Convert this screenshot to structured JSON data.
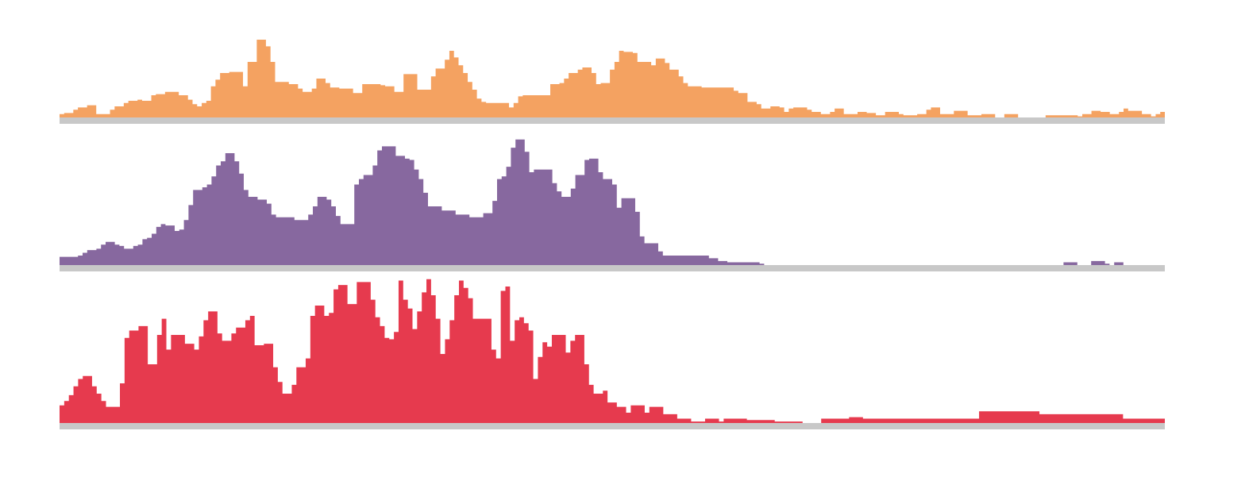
{
  "chart_data": {
    "type": "area",
    "step": true,
    "x_bins": 230,
    "grid": false,
    "legend": "none",
    "baseline_color": "#c8c8c8",
    "tracks": [
      {
        "color": "#f4a261",
        "ylim": [
          0,
          1
        ],
        "values": [
          0.03,
          0.04,
          0.04,
          0.07,
          0.09,
          0.09,
          0.11,
          0.11,
          0.03,
          0.03,
          0.03,
          0.07,
          0.1,
          0.1,
          0.13,
          0.15,
          0.15,
          0.16,
          0.15,
          0.15,
          0.2,
          0.21,
          0.21,
          0.23,
          0.23,
          0.23,
          0.2,
          0.2,
          0.16,
          0.12,
          0.1,
          0.13,
          0.15,
          0.28,
          0.34,
          0.4,
          0.4,
          0.41,
          0.41,
          0.41,
          0.28,
          0.5,
          0.5,
          0.7,
          0.7,
          0.64,
          0.5,
          0.32,
          0.32,
          0.32,
          0.3,
          0.3,
          0.26,
          0.23,
          0.23,
          0.26,
          0.35,
          0.35,
          0.31,
          0.27,
          0.27,
          0.26,
          0.26,
          0.26,
          0.22,
          0.22,
          0.3,
          0.3,
          0.3,
          0.3,
          0.29,
          0.28,
          0.28,
          0.23,
          0.23,
          0.39,
          0.39,
          0.39,
          0.25,
          0.25,
          0.25,
          0.37,
          0.44,
          0.44,
          0.52,
          0.6,
          0.54,
          0.47,
          0.4,
          0.32,
          0.25,
          0.17,
          0.14,
          0.13,
          0.13,
          0.13,
          0.13,
          0.13,
          0.09,
          0.13,
          0.19,
          0.2,
          0.2,
          0.2,
          0.2,
          0.2,
          0.2,
          0.3,
          0.3,
          0.31,
          0.35,
          0.4,
          0.4,
          0.43,
          0.45,
          0.45,
          0.4,
          0.3,
          0.31,
          0.31,
          0.43,
          0.5,
          0.6,
          0.59,
          0.59,
          0.58,
          0.5,
          0.5,
          0.5,
          0.47,
          0.53,
          0.53,
          0.49,
          0.43,
          0.43,
          0.37,
          0.31,
          0.28,
          0.28,
          0.28,
          0.27,
          0.27,
          0.27,
          0.27,
          0.27,
          0.27,
          0.27,
          0.24,
          0.22,
          0.22,
          0.14,
          0.14,
          0.12,
          0.08,
          0.08,
          0.1,
          0.1,
          0.09,
          0.05,
          0.08,
          0.09,
          0.09,
          0.09,
          0.07,
          0.05,
          0.05,
          0.03,
          0.03,
          0.05,
          0.08,
          0.08,
          0.03,
          0.03,
          0.03,
          0.05,
          0.05,
          0.04,
          0.04,
          0.02,
          0.02,
          0.05,
          0.05,
          0.05,
          0.03,
          0.02,
          0.02,
          0.02,
          0.03,
          0.03,
          0.07,
          0.09,
          0.09,
          0.03,
          0.03,
          0.03,
          0.06,
          0.06,
          0.06,
          0.02,
          0.02,
          0.02,
          0.03,
          0.03,
          0.03,
          0.0,
          0.0,
          0.03,
          0.03,
          0.03,
          0.0,
          0.0,
          0.0,
          0.0,
          0.0,
          0.0,
          0.02,
          0.02,
          0.02,
          0.02,
          0.02,
          0.02,
          0.02,
          0.01,
          0.03,
          0.03,
          0.06,
          0.06,
          0.05,
          0.05,
          0.03,
          0.03,
          0.05,
          0.08,
          0.06,
          0.06,
          0.06,
          0.03,
          0.03,
          0.01,
          0.03,
          0.05
        ]
      },
      {
        "color": "#87689f",
        "ylim": [
          0,
          1
        ],
        "values": [
          0.06,
          0.06,
          0.06,
          0.06,
          0.07,
          0.09,
          0.11,
          0.11,
          0.12,
          0.15,
          0.17,
          0.17,
          0.15,
          0.14,
          0.12,
          0.12,
          0.14,
          0.15,
          0.19,
          0.2,
          0.23,
          0.28,
          0.3,
          0.29,
          0.29,
          0.25,
          0.26,
          0.33,
          0.44,
          0.55,
          0.55,
          0.57,
          0.59,
          0.65,
          0.73,
          0.76,
          0.82,
          0.82,
          0.76,
          0.67,
          0.55,
          0.5,
          0.5,
          0.48,
          0.48,
          0.45,
          0.37,
          0.35,
          0.35,
          0.35,
          0.35,
          0.33,
          0.33,
          0.33,
          0.37,
          0.43,
          0.5,
          0.5,
          0.48,
          0.43,
          0.36,
          0.3,
          0.3,
          0.3,
          0.59,
          0.63,
          0.66,
          0.66,
          0.73,
          0.84,
          0.87,
          0.87,
          0.87,
          0.8,
          0.8,
          0.78,
          0.77,
          0.7,
          0.63,
          0.53,
          0.43,
          0.43,
          0.43,
          0.4,
          0.4,
          0.4,
          0.37,
          0.37,
          0.37,
          0.35,
          0.35,
          0.35,
          0.38,
          0.38,
          0.47,
          0.63,
          0.65,
          0.72,
          0.86,
          0.92,
          0.92,
          0.83,
          0.68,
          0.7,
          0.7,
          0.7,
          0.7,
          0.6,
          0.54,
          0.5,
          0.5,
          0.56,
          0.66,
          0.66,
          0.77,
          0.78,
          0.78,
          0.68,
          0.63,
          0.63,
          0.59,
          0.42,
          0.49,
          0.49,
          0.49,
          0.39,
          0.21,
          0.16,
          0.16,
          0.16,
          0.1,
          0.07,
          0.07,
          0.07,
          0.07,
          0.07,
          0.07,
          0.07,
          0.07,
          0.07,
          0.07,
          0.05,
          0.05,
          0.03,
          0.03,
          0.02,
          0.02,
          0.02,
          0.02,
          0.02,
          0.02,
          0.02,
          0.01,
          0.0,
          0.0,
          0.0,
          0.0,
          0.0,
          0.0,
          0.0,
          0.0,
          0.0,
          0.0,
          0.0,
          0.0,
          0.0,
          0.0,
          0.0,
          0.0,
          0.0,
          0.0,
          0.0,
          0.0,
          0.0,
          0.0,
          0.0,
          0.0,
          0.0,
          0.0,
          0.0,
          0.0,
          0.0,
          0.0,
          0.0,
          0.0,
          0.0,
          0.0,
          0.0,
          0.0,
          0.0,
          0.0,
          0.0,
          0.0,
          0.0,
          0.0,
          0.0,
          0.0,
          0.0,
          0.0,
          0.0,
          0.0,
          0.0,
          0.0,
          0.0,
          0.0,
          0.0,
          0.0,
          0.0,
          0.0,
          0.0,
          0.0,
          0.0,
          0.0,
          0.0,
          0.0,
          0.0,
          0.0,
          0.0,
          0.02,
          0.02,
          0.02,
          0.0,
          0.0,
          0.0,
          0.03,
          0.03,
          0.03,
          0.01,
          0.0,
          0.02,
          0.02,
          0.0,
          0.0,
          0.0,
          0.0,
          0.0,
          0.0,
          0.0,
          0.0,
          0.0
        ]
      },
      {
        "color": "#e63a4e",
        "ylim": [
          0,
          1
        ],
        "values": [
          0.12,
          0.15,
          0.19,
          0.25,
          0.3,
          0.32,
          0.32,
          0.25,
          0.2,
          0.15,
          0.11,
          0.11,
          0.11,
          0.27,
          0.58,
          0.63,
          0.63,
          0.66,
          0.66,
          0.4,
          0.4,
          0.6,
          0.71,
          0.5,
          0.6,
          0.6,
          0.6,
          0.54,
          0.54,
          0.5,
          0.59,
          0.7,
          0.76,
          0.76,
          0.61,
          0.56,
          0.56,
          0.61,
          0.65,
          0.65,
          0.7,
          0.73,
          0.53,
          0.53,
          0.54,
          0.54,
          0.38,
          0.28,
          0.2,
          0.2,
          0.26,
          0.38,
          0.38,
          0.44,
          0.73,
          0.8,
          0.8,
          0.73,
          0.75,
          0.91,
          0.94,
          0.94,
          0.81,
          0.81,
          0.96,
          0.96,
          0.96,
          0.84,
          0.72,
          0.66,
          0.58,
          0.57,
          0.62,
          0.97,
          0.84,
          0.78,
          0.64,
          0.76,
          0.89,
          0.98,
          0.87,
          0.71,
          0.47,
          0.57,
          0.7,
          0.87,
          0.97,
          0.92,
          0.85,
          0.71,
          0.71,
          0.71,
          0.71,
          0.5,
          0.44,
          0.9,
          0.93,
          0.56,
          0.7,
          0.72,
          0.68,
          0.63,
          0.3,
          0.45,
          0.55,
          0.52,
          0.6,
          0.6,
          0.6,
          0.48,
          0.56,
          0.6,
          0.6,
          0.4,
          0.26,
          0.2,
          0.2,
          0.22,
          0.14,
          0.14,
          0.11,
          0.11,
          0.07,
          0.12,
          0.12,
          0.12,
          0.07,
          0.11,
          0.11,
          0.11,
          0.06,
          0.06,
          0.06,
          0.03,
          0.03,
          0.03,
          0.01,
          0.01,
          0.01,
          0.03,
          0.03,
          0.03,
          0.01,
          0.03,
          0.03,
          0.03,
          0.03,
          0.03,
          0.02,
          0.02,
          0.02,
          0.02,
          0.02,
          0.02,
          0.01,
          0.01,
          0.01,
          0.01,
          0.01,
          0.01,
          0.0,
          0.0,
          0.0,
          0.0,
          0.03,
          0.03,
          0.03,
          0.03,
          0.03,
          0.03,
          0.04,
          0.04,
          0.04,
          0.03,
          0.03,
          0.03,
          0.03,
          0.03,
          0.03,
          0.03,
          0.03,
          0.03,
          0.03,
          0.03,
          0.03,
          0.03,
          0.03,
          0.03,
          0.03,
          0.03,
          0.03,
          0.03,
          0.03,
          0.03,
          0.03,
          0.03,
          0.03,
          0.03,
          0.08,
          0.08,
          0.08,
          0.08,
          0.08,
          0.08,
          0.08,
          0.08,
          0.08,
          0.08,
          0.08,
          0.08,
          0.08,
          0.06,
          0.06,
          0.06,
          0.06,
          0.06,
          0.06,
          0.06,
          0.06,
          0.06,
          0.06,
          0.06,
          0.06,
          0.06,
          0.06,
          0.06,
          0.06,
          0.06,
          0.06,
          0.03,
          0.03,
          0.03,
          0.03,
          0.03,
          0.03,
          0.03,
          0.03,
          0.03
        ]
      }
    ]
  }
}
